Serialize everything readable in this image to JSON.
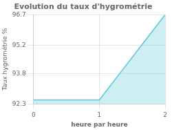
{
  "chart_data": {
    "type": "area",
    "title": "Evolution du taux d'hygrométrie",
    "xlabel": "heure par heure",
    "ylabel": "Taux hygrométrie %",
    "x": [
      0,
      1,
      2
    ],
    "values": [
      92.5,
      92.5,
      96.7
    ],
    "color": "#5bc8d8",
    "xlim": [
      0,
      2
    ],
    "ylim": [
      92.3,
      96.7
    ],
    "xticks": [
      0,
      1,
      2
    ],
    "yticks": [
      92.3,
      93.8,
      95.2,
      96.7
    ],
    "grid": true
  }
}
